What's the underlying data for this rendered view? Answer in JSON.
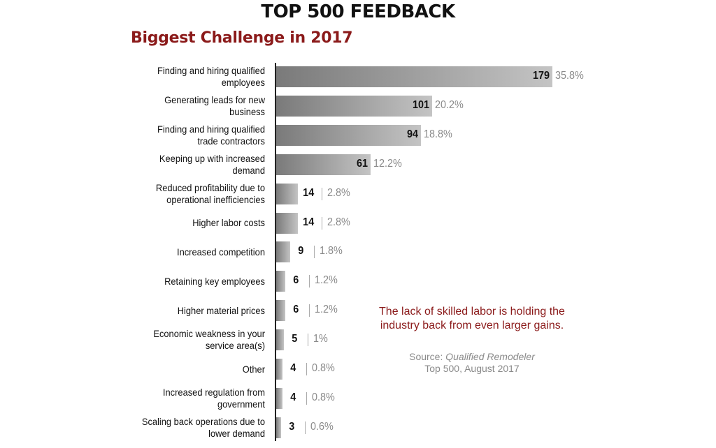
{
  "chart_data": {
    "type": "bar",
    "orientation": "horizontal",
    "title": "TOP 500 FEEDBACK",
    "subtitle": "Biggest Challenge in 2017",
    "categories": [
      "Finding and hiring qualified employees",
      "Generating leads for new business",
      "Finding and hiring qualified trade contractors",
      "Keeping up with increased demand",
      "Reduced profitability due to operational inefficiencies",
      "Higher labor costs",
      "Increased competition",
      "Retaining key employees",
      "Higher material prices",
      "Economic weakness in your service area(s)",
      "Other",
      "Increased regulation from government",
      "Scaling back operations due to lower demand"
    ],
    "values": [
      179,
      101,
      94,
      61,
      14,
      14,
      9,
      6,
      6,
      5,
      4,
      4,
      3
    ],
    "percent_labels": [
      "35.8%",
      "20.2%",
      "18.8%",
      "12.2%",
      "2.8%",
      "2.8%",
      "1.8%",
      "1.2%",
      "1.2%",
      "1%",
      "0.8%",
      "0.8%",
      "0.6%"
    ],
    "xlim": [
      0,
      179
    ]
  },
  "note": "The lack of skilled labor is holding the industry back from even larger gains.",
  "source": {
    "prefix": "Source: ",
    "publication": "Qualified Remodeler",
    "suffix": "Top 500, August 2017"
  }
}
